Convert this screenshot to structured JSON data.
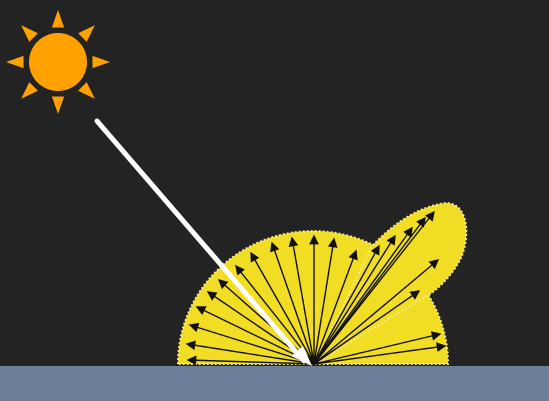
{
  "scene": {
    "background_color": "#232323",
    "surface_color": "#6b7f98",
    "sun_color": "#ffa200",
    "lobe_fill_color": "#f2dd25",
    "lobe_outline_color": "#f8ea7a",
    "arrow_color": "#111111",
    "incident_ray_color": "#ffffff"
  },
  "icons": {
    "sun": "sun-icon"
  }
}
